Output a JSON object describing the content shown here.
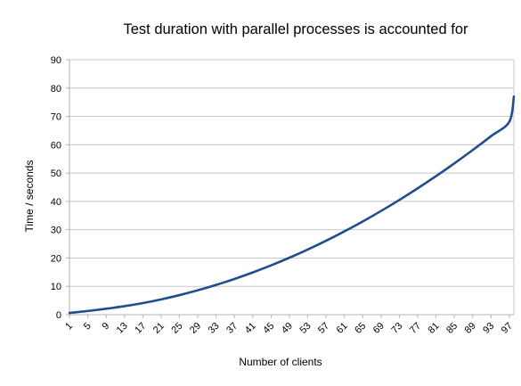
{
  "chart_data": {
    "type": "line",
    "title": "Test duration with parallel processes is accounted for",
    "xlabel": "Number of clients",
    "ylabel": "Time / seconds",
    "ylim": [
      0,
      90
    ],
    "yticks": [
      0,
      10,
      20,
      30,
      40,
      50,
      60,
      70,
      80,
      90
    ],
    "xticks": [
      1,
      5,
      9,
      13,
      17,
      21,
      25,
      29,
      33,
      37,
      41,
      45,
      49,
      53,
      57,
      61,
      65,
      69,
      73,
      77,
      81,
      85,
      89,
      93,
      97
    ],
    "xlim": [
      1,
      98
    ],
    "grid": "horizontal",
    "legend": "none",
    "series": [
      {
        "color": "#1f4e8c",
        "x": [
          1,
          5,
          9,
          13,
          17,
          21,
          25,
          29,
          33,
          37,
          41,
          45,
          49,
          53,
          57,
          61,
          65,
          69,
          73,
          77,
          81,
          85,
          89,
          93,
          97,
          98
        ],
        "values": [
          0.6,
          1.3,
          2.1,
          3.0,
          4.1,
          5.4,
          6.9,
          8.6,
          10.5,
          12.6,
          14.9,
          17.4,
          20.1,
          23.0,
          26.1,
          29.4,
          32.9,
          36.6,
          40.5,
          44.6,
          48.9,
          53.4,
          58.1,
          63.0,
          68.1,
          77.0
        ]
      }
    ]
  }
}
